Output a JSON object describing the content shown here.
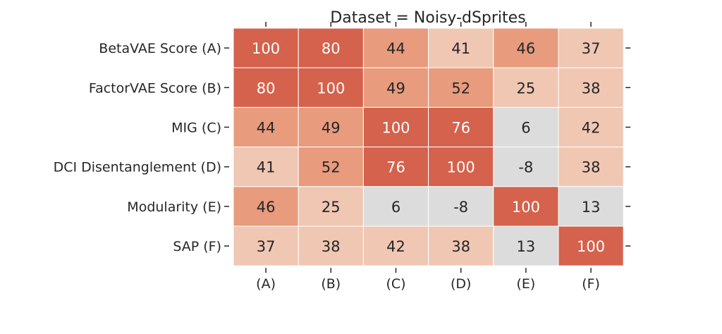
{
  "chart_data": {
    "type": "heatmap",
    "title": "Dataset = Noisy-dSprites",
    "row_labels": [
      "BetaVAE Score (A)",
      "FactorVAE Score (B)",
      "MIG (C)",
      "DCI Disentanglement (D)",
      "Modularity (E)",
      "SAP (F)"
    ],
    "col_labels": [
      "(A)",
      "(B)",
      "(C)",
      "(D)",
      "(E)",
      "(F)"
    ],
    "values": [
      [
        100,
        80,
        44,
        41,
        46,
        37
      ],
      [
        80,
        100,
        49,
        52,
        25,
        38
      ],
      [
        44,
        49,
        100,
        76,
        6,
        42
      ],
      [
        41,
        52,
        76,
        100,
        -8,
        38
      ],
      [
        46,
        25,
        6,
        -8,
        100,
        13
      ],
      [
        37,
        38,
        42,
        38,
        13,
        100
      ]
    ],
    "colorscale": {
      "neutral": "#dcdcdc",
      "light": "#f0c7b3",
      "medium": "#e89b7d",
      "dark": "#d4624c"
    },
    "grid": false,
    "legend": "none"
  }
}
